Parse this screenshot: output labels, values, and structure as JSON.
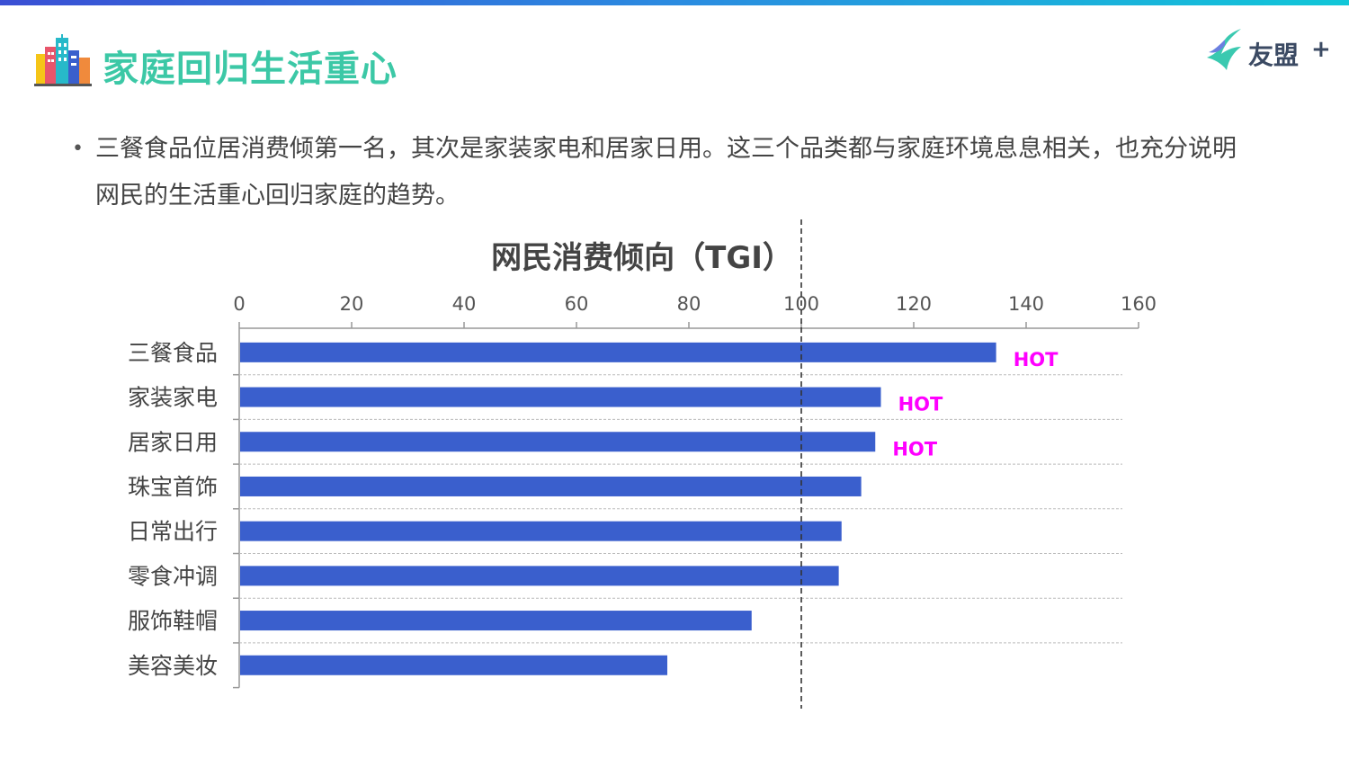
{
  "header": {
    "title": "家庭回归生活重心",
    "logo_text": "友盟",
    "logo_plus": "+"
  },
  "bullet": {
    "text": "三餐食品位居消费倾第一名，其次是家装家电和居家日用。这三个品类都与家庭环境息息相关，也充分说明网民的生活重心回归家庭的趋势。"
  },
  "colors": {
    "bar": "#3a5fcd",
    "hot": "#ff00ff",
    "title": "#3cc8a6",
    "topbar_start": "#3a4fd4",
    "topbar_end": "#11c7d8"
  },
  "chart_data": {
    "type": "bar",
    "orientation": "horizontal",
    "title": "网民消费倾向（TGI）",
    "categories": [
      "三餐食品",
      "家装家电",
      "居家日用",
      "珠宝首饰",
      "日常出行",
      "零食冲调",
      "服饰鞋帽",
      "美容美妆"
    ],
    "values": [
      134.5,
      114,
      113,
      110.5,
      107,
      106.5,
      91,
      76
    ],
    "xlim": [
      0,
      160
    ],
    "xticks": [
      0,
      20,
      40,
      60,
      80,
      100,
      120,
      140,
      160
    ],
    "reference_line": 100,
    "annotations": [
      "HOT",
      "HOT",
      "HOT",
      "",
      "",
      "",
      "",
      ""
    ],
    "xlabel": "",
    "ylabel": "",
    "grid": "horizontal dashed"
  }
}
